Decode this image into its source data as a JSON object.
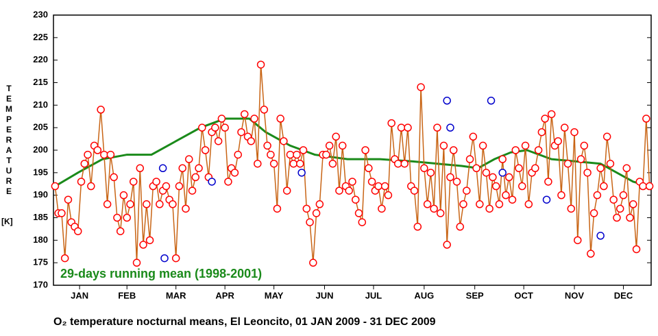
{
  "chart_data": {
    "type": "line",
    "title": "O₂ temperature nocturnal means, El Leoncito, 01 JAN 2009 - 31 DEC 2009",
    "ylabel": "TEMPERATURE",
    "yunit": "[K]",
    "xlim": [
      0,
      366
    ],
    "ylim": [
      170,
      230
    ],
    "yticks": [
      170,
      175,
      180,
      185,
      190,
      195,
      200,
      205,
      210,
      215,
      220,
      225,
      230
    ],
    "xticks": [
      {
        "value": 16,
        "label": "JAN"
      },
      {
        "value": 45,
        "label": "FEB"
      },
      {
        "value": 75,
        "label": "MAR"
      },
      {
        "value": 105,
        "label": "APR"
      },
      {
        "value": 135,
        "label": "MAY"
      },
      {
        "value": 166,
        "label": "JUN"
      },
      {
        "value": 196,
        "label": "JUL"
      },
      {
        "value": 227,
        "label": "AUG"
      },
      {
        "value": 258,
        "label": "SEP"
      },
      {
        "value": 288,
        "label": "OCT"
      },
      {
        "value": 319,
        "label": "NOV"
      },
      {
        "value": 349,
        "label": "DEC"
      }
    ],
    "series": [
      {
        "name": "29-days running mean (1998-2001)",
        "color": "#1a8a1a",
        "x": [
          1,
          15,
          30,
          45,
          60,
          75,
          90,
          105,
          120,
          130,
          145,
          160,
          180,
          200,
          220,
          235,
          250,
          260,
          270,
          280,
          290,
          305,
          320,
          335,
          345,
          355,
          365
        ],
        "values": [
          192,
          195,
          198,
          199,
          199,
          202,
          205,
          207,
          207,
          204,
          201,
          199,
          198,
          198,
          197.5,
          197,
          196.5,
          196,
          198,
          199.5,
          200,
          198,
          197.5,
          197,
          195,
          193,
          192
        ]
      },
      {
        "color": "#ff0000",
        "line_color": "#c86414",
        "x": [
          1,
          3,
          5,
          7,
          9,
          11,
          13,
          15,
          17,
          19,
          21,
          23,
          25,
          27,
          29,
          31,
          33,
          35,
          37,
          39,
          41,
          43,
          45,
          47,
          49,
          51,
          53,
          55,
          57,
          59,
          61,
          63,
          65,
          67,
          69,
          71,
          73,
          75,
          77,
          79,
          81,
          83,
          85,
          87,
          89,
          91,
          93,
          95,
          97,
          99,
          101,
          103,
          105,
          107,
          109,
          111,
          113,
          115,
          117,
          119,
          121,
          123,
          125,
          127,
          129,
          131,
          133,
          135,
          137,
          139,
          141,
          143,
          145,
          147,
          149,
          151,
          153,
          155,
          157,
          159,
          161,
          163,
          165,
          167,
          169,
          171,
          173,
          175,
          177,
          179,
          181,
          183,
          185,
          187,
          189,
          191,
          193,
          195,
          197,
          199,
          201,
          203,
          205,
          207,
          209,
          211,
          213,
          215,
          217,
          219,
          221,
          223,
          225,
          227,
          229,
          231,
          233,
          235,
          237,
          239,
          241,
          243,
          245,
          247,
          249,
          251,
          253,
          255,
          257,
          259,
          261,
          263,
          265,
          267,
          269,
          271,
          273,
          275,
          277,
          279,
          281,
          283,
          285,
          287,
          289,
          291,
          293,
          295,
          297,
          299,
          301,
          303,
          305,
          307,
          309,
          311,
          313,
          315,
          317,
          319,
          321,
          323,
          325,
          327,
          329,
          331,
          333,
          335,
          337,
          339,
          341,
          343,
          345,
          347,
          349,
          351,
          353,
          355,
          357,
          359,
          361,
          363,
          365
        ],
        "values": [
          192,
          186,
          186,
          176,
          189,
          184,
          183,
          182,
          193,
          197,
          199,
          192,
          201,
          200,
          209,
          199,
          188,
          199,
          194,
          185,
          182,
          190,
          185,
          188,
          193,
          175,
          196,
          179,
          188,
          180,
          192,
          193,
          188,
          191,
          192,
          189,
          188,
          176,
          192,
          196,
          187,
          198,
          191,
          194,
          196,
          205,
          200,
          194,
          204,
          205,
          202,
          207,
          205,
          193,
          196,
          195,
          199,
          204,
          208,
          203,
          202,
          207,
          197,
          219,
          209,
          201,
          199,
          197,
          187,
          207,
          202,
          191,
          199,
          197,
          199,
          197,
          200,
          187,
          184,
          175,
          186,
          188,
          199,
          199,
          201,
          197,
          203,
          191,
          201,
          192,
          191,
          193,
          189,
          186,
          184,
          200,
          196,
          193,
          191,
          192,
          187,
          192,
          190,
          206,
          198,
          197,
          205,
          197,
          205,
          192,
          191,
          183,
          214,
          196,
          188,
          195,
          187,
          205,
          186,
          201,
          179,
          194,
          200,
          193,
          183,
          188,
          191,
          198,
          203,
          196,
          188,
          201,
          195,
          187,
          194,
          192,
          188,
          198,
          190,
          194,
          189,
          200,
          196,
          192,
          201,
          188,
          195,
          196,
          200,
          204,
          207,
          193,
          208,
          201,
          202,
          190,
          205,
          197,
          187,
          204,
          180,
          198,
          201,
          195,
          177,
          186,
          190,
          196,
          192,
          203,
          197,
          189,
          185,
          187,
          190,
          196,
          185,
          188,
          178,
          193,
          192,
          207,
          192
        ]
      },
      {
        "color": "#0000cc",
        "x": [
          67,
          68,
          97,
          152,
          241,
          243,
          268,
          275,
          302,
          335
        ],
        "values": [
          196,
          176,
          193,
          195,
          211,
          205,
          211,
          195,
          189,
          181
        ]
      }
    ]
  }
}
